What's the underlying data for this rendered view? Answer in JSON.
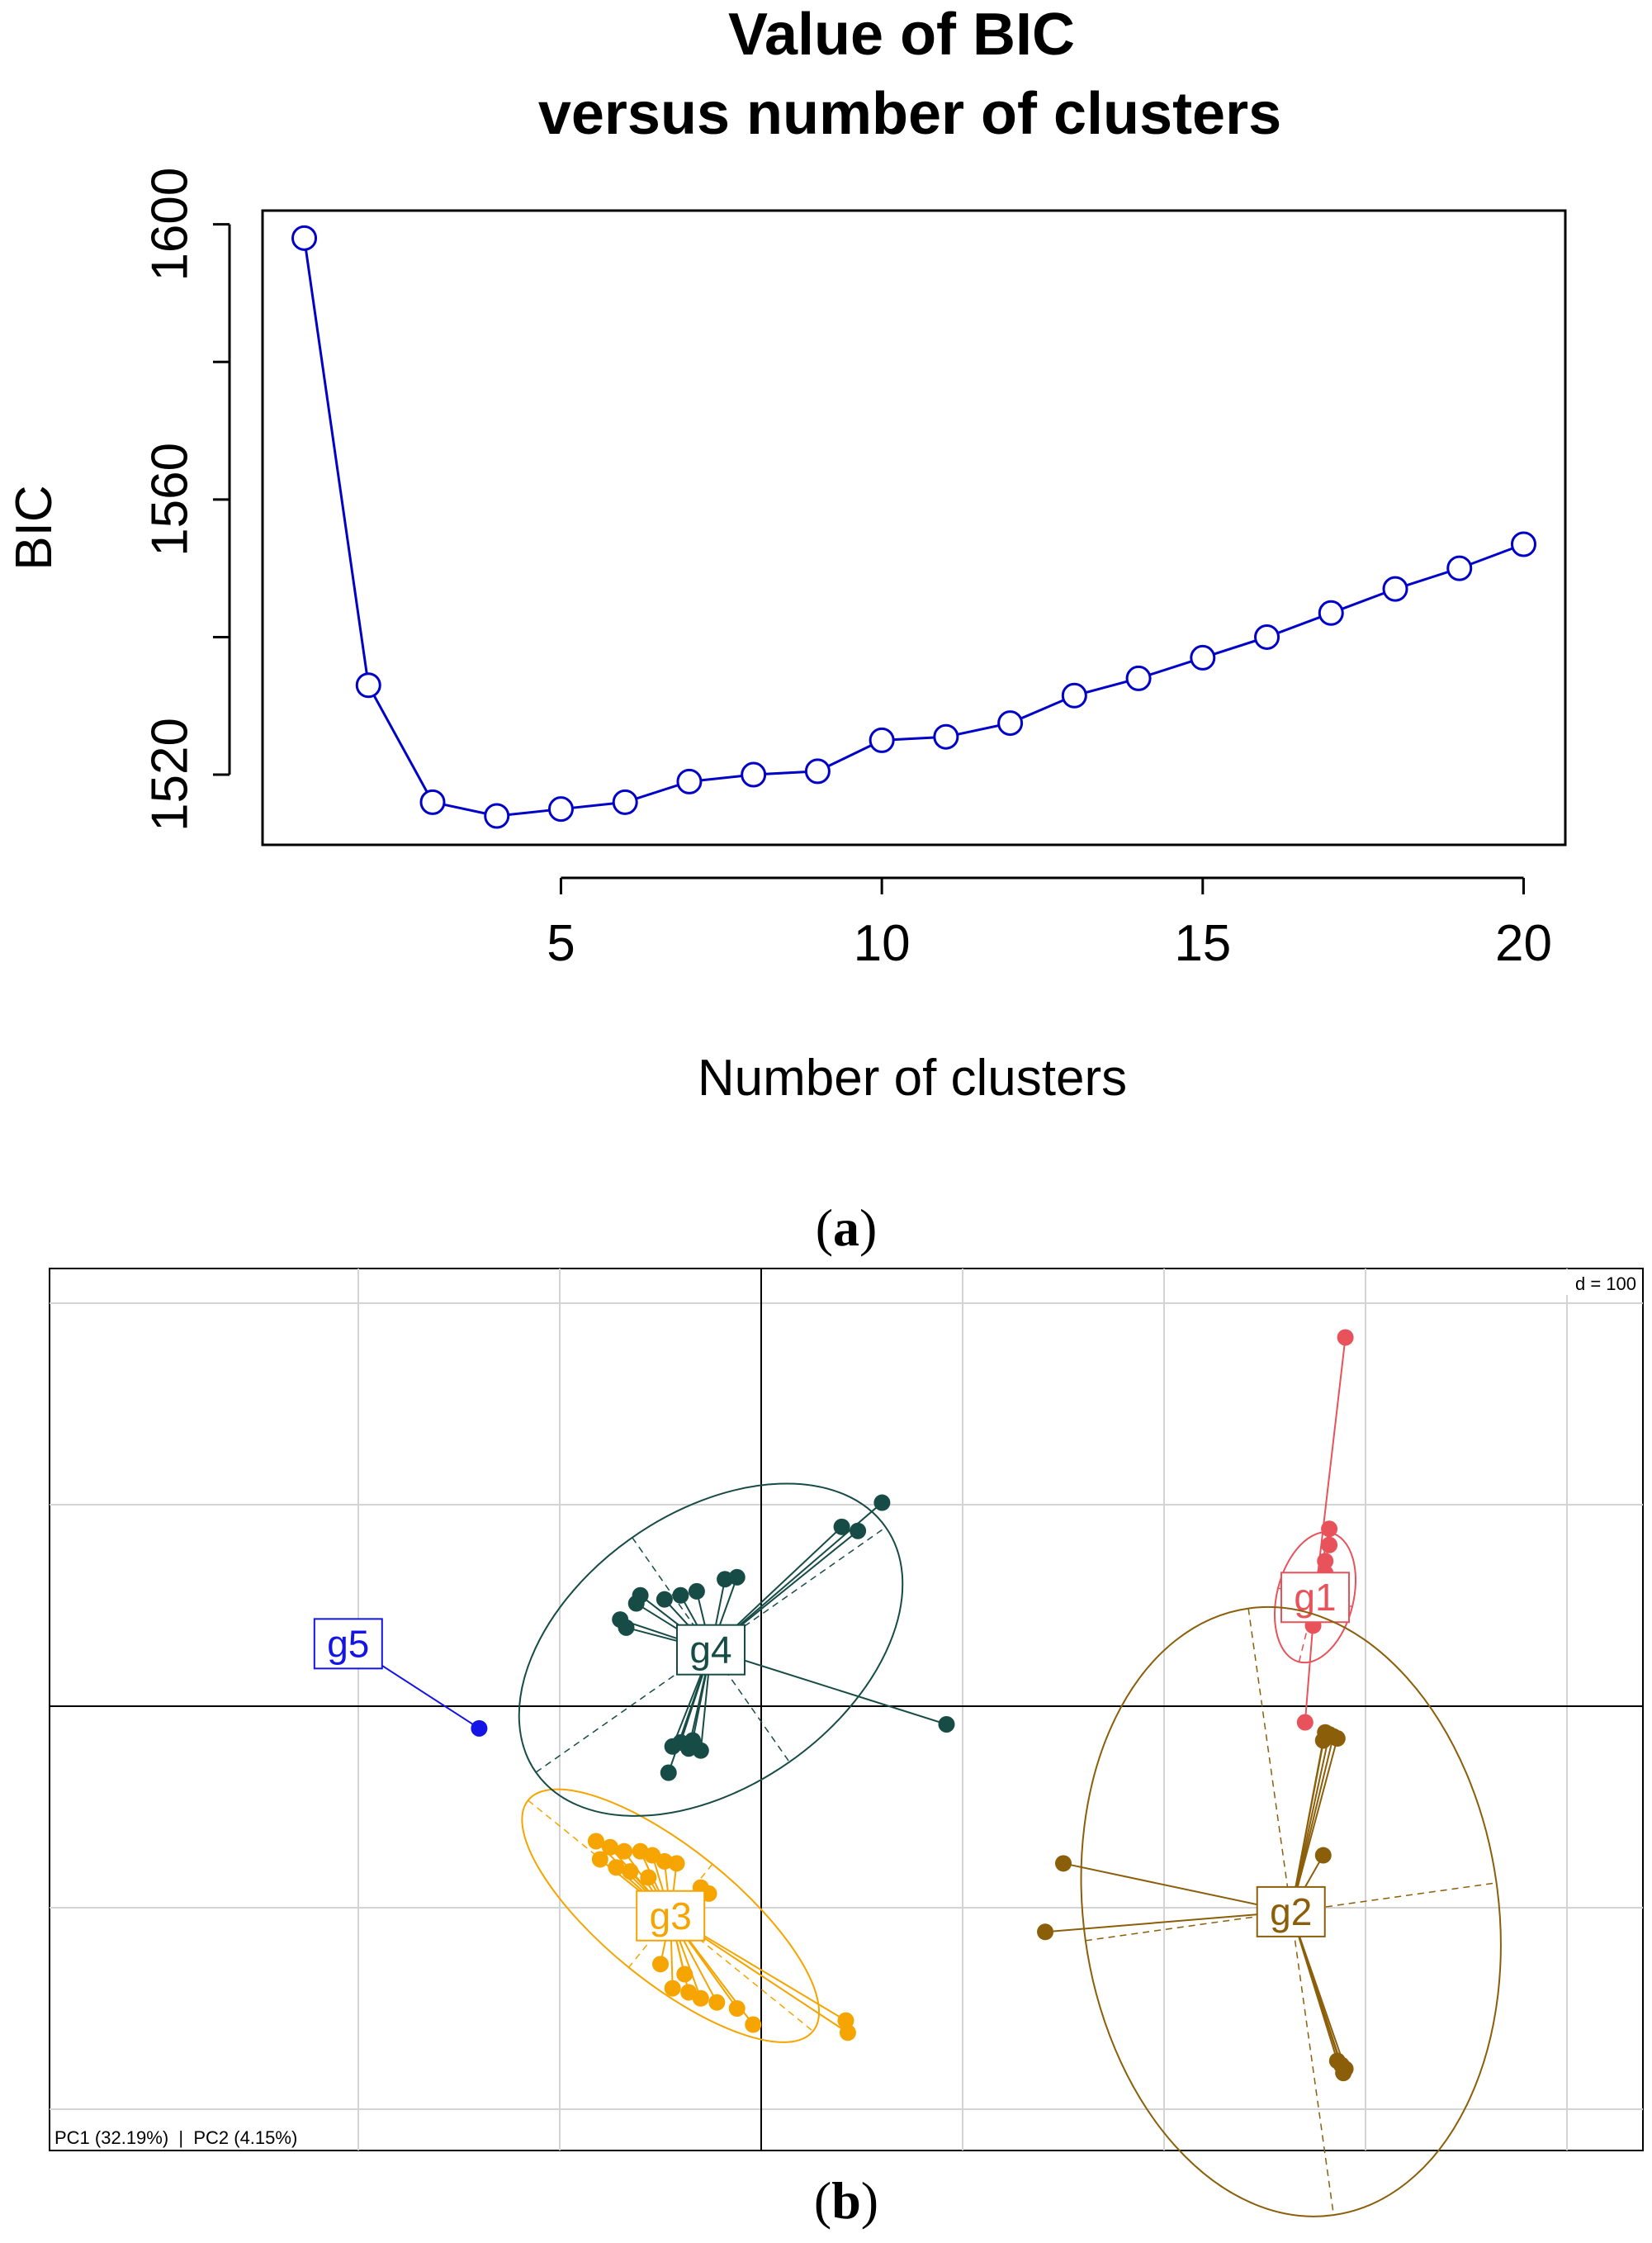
{
  "chart_data": [
    {
      "type": "line",
      "title": "Value of BIC",
      "subtitle": "versus number of clusters",
      "xlabel": "Number of clusters",
      "ylabel": "BIC",
      "x": [
        1,
        2,
        3,
        4,
        5,
        6,
        7,
        8,
        9,
        10,
        11,
        12,
        13,
        14,
        15,
        16,
        17,
        18,
        19,
        20
      ],
      "series": [
        {
          "values": [
            1598,
            1533,
            1516,
            1514,
            1515,
            1516,
            1519,
            1520,
            1520.5,
            1525,
            1525.5,
            1527.5,
            1531.5,
            1534,
            1537,
            1540,
            1543.5,
            1547,
            1550,
            1553.5
          ]
        }
      ],
      "xticks": [
        "5",
        "10",
        "15",
        "20"
      ],
      "yticks": [
        "1520",
        "1560",
        "1600"
      ],
      "xlim": [
        0.35,
        20.65
      ],
      "ylim": [
        1509.8,
        1602
      ],
      "color": "#0000c8",
      "marker": "open-circle",
      "panel_label": "a"
    },
    {
      "type": "scatter",
      "subtype": "PCA cluster plot (s.class)",
      "scale_label": "d = 100",
      "axes_label": "PC1 (32.19%)  |  PC2 (4.15%)",
      "grid": true,
      "panel_label": "b",
      "groups": [
        {
          "name": "g1",
          "color": "#e8525a",
          "centroid": [
            275,
            54
          ],
          "ellipse": {
            "rx": 33,
            "ry": 19,
            "angle": -76
          },
          "points": [
            [
              290,
              183
            ],
            [
              270,
              -8
            ],
            [
              282,
              88
            ],
            [
              282,
              80
            ],
            [
              280,
              72
            ],
            [
              280,
              66
            ],
            [
              278,
              60
            ],
            [
              278,
              54
            ],
            [
              276,
              48
            ],
            [
              275,
              44
            ],
            [
              274,
              40
            ],
            [
              276,
              58
            ]
          ]
        },
        {
          "name": "g2",
          "color": "#8b5e0a",
          "centroid": [
            263,
            -102
          ],
          "ellipse": {
            "rx": 103,
            "ry": 152,
            "angle": -8
          },
          "points": [
            [
              282,
              -14
            ],
            [
              284,
              -15
            ],
            [
              286,
              -16
            ],
            [
              279,
              -17
            ],
            [
              280,
              -13
            ],
            [
              279,
              -74
            ],
            [
              150,
              -78
            ],
            [
              141,
              -112
            ],
            [
              288,
              -178
            ],
            [
              290,
              -180
            ],
            [
              286,
              -176
            ],
            [
              289,
              -182
            ]
          ]
        },
        {
          "name": "g3",
          "color": "#f5a400",
          "centroid": [
            -45,
            -104
          ],
          "ellipse": {
            "rx": 91,
            "ry": 33,
            "angle": 39
          },
          "points": [
            [
              -82,
              -67
            ],
            [
              -75,
              -70
            ],
            [
              -68,
              -72
            ],
            [
              -60,
              -72
            ],
            [
              -54,
              -74
            ],
            [
              -48,
              -77
            ],
            [
              -42,
              -78
            ],
            [
              -30,
              -90
            ],
            [
              -26,
              -93
            ],
            [
              -80,
              -76
            ],
            [
              -72,
              -80
            ],
            [
              -65,
              -82
            ],
            [
              -56,
              -85
            ],
            [
              -44,
              -140
            ],
            [
              -36,
              -142
            ],
            [
              -30,
              -145
            ],
            [
              -22,
              -147
            ],
            [
              -12,
              -150
            ],
            [
              -4,
              -158
            ],
            [
              42,
              -156
            ],
            [
              43,
              -162
            ],
            [
              -38,
              -133
            ],
            [
              -50,
              -128
            ]
          ]
        },
        {
          "name": "g4",
          "color": "#174c46",
          "centroid": [
            -25,
            28
          ],
          "ellipse": {
            "rx": 106,
            "ry": 68,
            "angle": -35
          },
          "points": [
            [
              -70,
              43
            ],
            [
              -67,
              39
            ],
            [
              -62,
              51
            ],
            [
              -60,
              55
            ],
            [
              -48,
              53
            ],
            [
              -40,
              55
            ],
            [
              -32,
              57
            ],
            [
              -18,
              63
            ],
            [
              -12,
              64
            ],
            [
              40,
              89
            ],
            [
              48,
              87
            ],
            [
              60,
              101
            ],
            [
              -44,
              -20
            ],
            [
              -40,
              -18
            ],
            [
              -36,
              -21
            ],
            [
              -30,
              -22
            ],
            [
              -34,
              -17
            ],
            [
              -46,
              -33
            ],
            [
              92,
              -9
            ]
          ]
        },
        {
          "name": "g5",
          "color": "#1414e6",
          "centroid": [
            -205,
            31
          ],
          "ellipse": null,
          "points": [
            [
              -140,
              -11
            ]
          ]
        }
      ]
    }
  ]
}
